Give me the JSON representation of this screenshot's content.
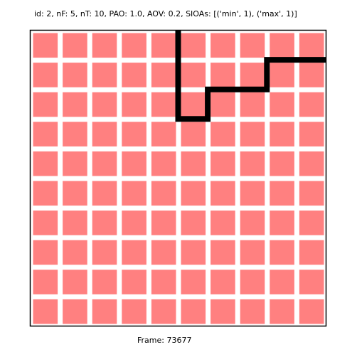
{
  "header": {
    "text": "id: 2, nF: 5, nT: 10, PAO: 1.0, AOV: 0.2, SIOAs: [('min', 1), ('max', 1)]"
  },
  "footer": {
    "text": "Frame: 73677"
  },
  "board": {
    "rows": 10,
    "cols": 10,
    "cell_color": "#ff8080",
    "background_color": "#ffffff",
    "border_color": "#000000",
    "path_color": "#000000"
  },
  "path": {
    "description_points": [
      [
        5,
        0
      ],
      [
        5,
        1
      ],
      [
        5,
        2
      ],
      [
        5,
        3
      ],
      [
        6,
        3
      ],
      [
        6,
        2
      ],
      [
        7,
        2
      ],
      [
        8,
        2
      ],
      [
        8,
        1
      ],
      [
        9,
        1
      ],
      [
        10,
        1
      ]
    ]
  }
}
